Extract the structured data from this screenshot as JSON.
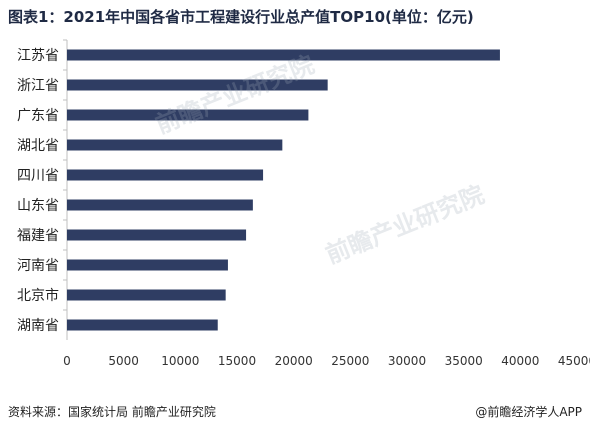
{
  "title": "图表1：2021年中国各省市工程建设行业总产值TOP10(单位：亿元)",
  "footer": {
    "source": "资料来源：国家统计局 前瞻产业研究院",
    "brand": "@前瞻经济学人APP"
  },
  "watermarks": [
    "前瞻产业研究院",
    "前瞻产业研究院"
  ],
  "colors": {
    "bar": "#2f3d63",
    "axis": "#bfbfbf"
  },
  "chart_data": {
    "type": "bar",
    "orientation": "horizontal",
    "title": "图表1：2021年中国各省市工程建设行业总产值TOP10(单位：亿元)",
    "categories": [
      "江苏省",
      "浙江省",
      "广东省",
      "湖北省",
      "四川省",
      "山东省",
      "福建省",
      "河南省",
      "北京市",
      "湖南省"
    ],
    "values": [
      38200,
      23000,
      21300,
      19000,
      17300,
      16400,
      15800,
      14200,
      14000,
      13300
    ],
    "xlim": [
      0,
      45000
    ],
    "xticks": [
      "0",
      "5000",
      "10000",
      "15000",
      "20000",
      "25000",
      "30000",
      "35000",
      "40000",
      "45000"
    ],
    "grid": false,
    "legend": "none"
  }
}
